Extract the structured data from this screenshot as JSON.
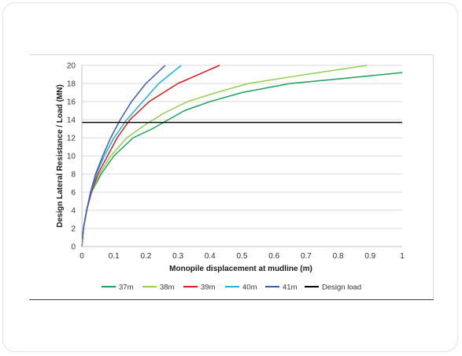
{
  "chart_data": {
    "type": "line",
    "title": "",
    "xlabel": "Monopile displacement at mudline (m)",
    "ylabel": "Design Lateral Resistance / Load (MN)",
    "xlim": [
      0,
      1
    ],
    "ylim": [
      0,
      20
    ],
    "x_ticks": [
      "0",
      "0.1",
      "0.2",
      "0.3",
      "0.4",
      "0.5",
      "0.6",
      "0.7",
      "0.8",
      "0.9",
      "1"
    ],
    "x_tick_values": [
      0,
      0.1,
      0.2,
      0.3,
      0.4,
      0.5,
      0.6,
      0.7,
      0.8,
      0.9,
      1
    ],
    "y_ticks": [
      "0",
      "2",
      "4",
      "6",
      "8",
      "10",
      "12",
      "14",
      "16",
      "18",
      "20"
    ],
    "y_tick_values": [
      0,
      2,
      4,
      6,
      8,
      10,
      12,
      14,
      16,
      18,
      20
    ],
    "grid": "horizontal",
    "legend_position": "bottom",
    "series": [
      {
        "name": "37m",
        "color": "#1aa35a",
        "x": [
          0,
          0.005,
          0.015,
          0.03,
          0.06,
          0.1,
          0.16,
          0.22,
          0.27,
          0.32,
          0.4,
          0.5,
          0.65,
          0.8,
          1.0
        ],
        "y": [
          0,
          2,
          4,
          6,
          8,
          10,
          12,
          13,
          14,
          15,
          16,
          17,
          18,
          18.5,
          19.2
        ]
      },
      {
        "name": "38m",
        "color": "#92d050",
        "x": [
          0,
          0.005,
          0.015,
          0.03,
          0.055,
          0.09,
          0.14,
          0.2,
          0.26,
          0.33,
          0.42,
          0.52,
          0.7,
          0.89
        ],
        "y": [
          0,
          2,
          4,
          6,
          8,
          10,
          12,
          13.5,
          14.8,
          16,
          17,
          18,
          19,
          20
        ]
      },
      {
        "name": "39m",
        "color": "#d91c1c",
        "x": [
          0,
          0.005,
          0.015,
          0.03,
          0.05,
          0.08,
          0.11,
          0.15,
          0.21,
          0.3,
          0.43
        ],
        "y": [
          0,
          2,
          4,
          6,
          8,
          10,
          12,
          14,
          16,
          18,
          20
        ]
      },
      {
        "name": "40m",
        "color": "#17b5d9",
        "x": [
          0,
          0.005,
          0.015,
          0.028,
          0.045,
          0.07,
          0.1,
          0.14,
          0.19,
          0.24,
          0.31
        ],
        "y": [
          0,
          2,
          4,
          6,
          8,
          10,
          12,
          14,
          16,
          18,
          20
        ]
      },
      {
        "name": "41m",
        "color": "#3b5cb5",
        "x": [
          0,
          0.005,
          0.015,
          0.027,
          0.043,
          0.065,
          0.09,
          0.12,
          0.155,
          0.2,
          0.26
        ],
        "y": [
          0,
          2,
          4,
          6,
          8,
          10,
          12,
          14,
          16,
          18,
          20
        ]
      },
      {
        "name": "Design load",
        "color": "#000000",
        "x": [
          0,
          1
        ],
        "y": [
          13.7,
          13.7
        ]
      }
    ]
  }
}
